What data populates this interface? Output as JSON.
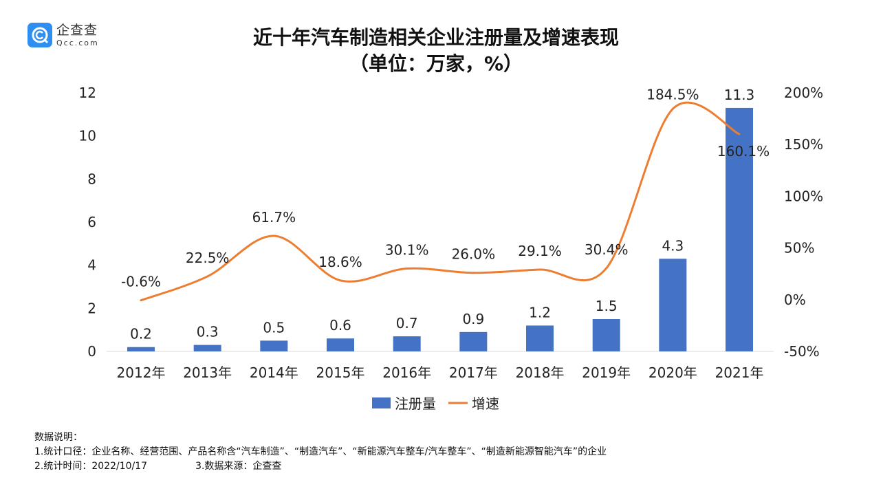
{
  "logo": {
    "cn": "企查查",
    "en": "Qcc.com"
  },
  "chart_data": {
    "type": "bar+line",
    "title": "近十年汽车制造相关企业注册量及增速表现",
    "subtitle": "（单位：万家，%）",
    "categories": [
      "2012年",
      "2013年",
      "2014年",
      "2015年",
      "2016年",
      "2017年",
      "2018年",
      "2019年",
      "2020年",
      "2021年"
    ],
    "series": [
      {
        "name": "注册量",
        "type": "bar",
        "axis": "left",
        "color": "#4472c4",
        "values": [
          0.2,
          0.3,
          0.5,
          0.6,
          0.7,
          0.9,
          1.2,
          1.5,
          4.3,
          11.3
        ],
        "labels": [
          "0.2",
          "0.3",
          "0.5",
          "0.6",
          "0.7",
          "0.9",
          "1.2",
          "1.5",
          "4.3",
          "11.3"
        ]
      },
      {
        "name": "增速",
        "type": "line",
        "axis": "right",
        "color": "#ed7d31",
        "values": [
          -0.6,
          22.5,
          61.7,
          18.6,
          30.1,
          26.0,
          29.1,
          30.4,
          184.5,
          160.1
        ],
        "labels": [
          "-0.6%",
          "22.5%",
          "61.7%",
          "18.6%",
          "30.1%",
          "26.0%",
          "29.1%",
          "30.4%",
          "184.5%",
          "160.1%"
        ]
      }
    ],
    "y_left": {
      "range": [
        0,
        12
      ],
      "ticks": [
        "0",
        "2",
        "4",
        "6",
        "8",
        "10",
        "12"
      ]
    },
    "y_right": {
      "range": [
        -50,
        200
      ],
      "ticks": [
        "-50%",
        "0%",
        "50%",
        "100%",
        "150%",
        "200%"
      ]
    },
    "grid": false,
    "legend": "bottom"
  },
  "notes": {
    "heading": "数据说明：",
    "line1": "1.统计口径：企业名称、经营范围、产品名称含“汽车制造”、“制造汽车”、“新能源汽车整车/汽车整车”、“制造新能源智能汽车”的企业",
    "line2a": "2.统计时间：2022/10/17",
    "line2b": "3.数据来源：企查查"
  }
}
